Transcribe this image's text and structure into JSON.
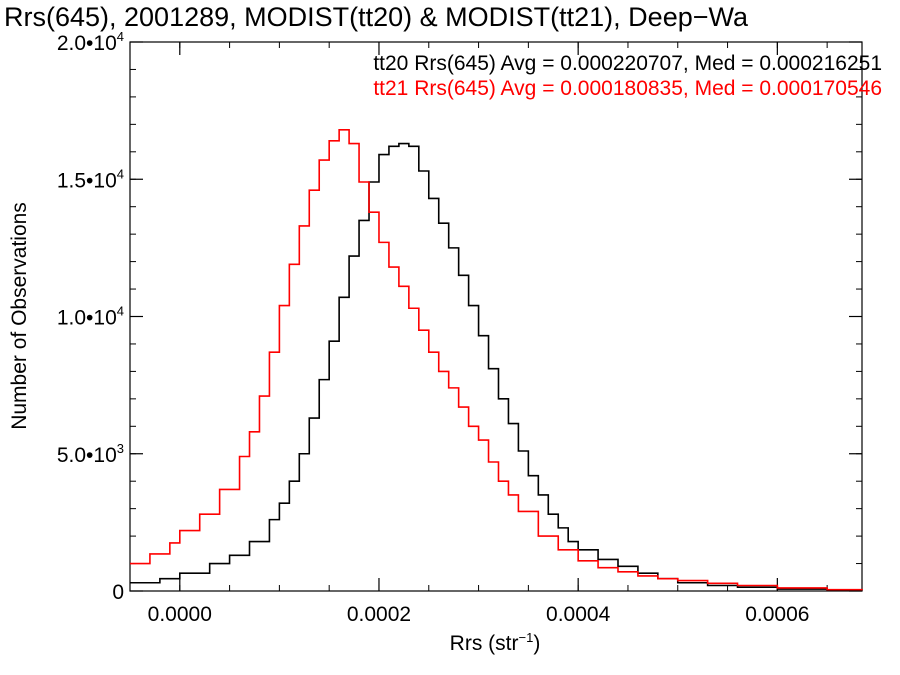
{
  "chart_data": {
    "type": "line",
    "title": "Rrs(645), 2001289, MODIST(tt20) & MODIST(tt21), Deep−Wa",
    "xlabel": "Rrs (str",
    "xlabel_sup": "−1",
    "xlabel_end": ")",
    "ylabel": "Number of Observations",
    "xlim": [
      -5e-05,
      0.000685
    ],
    "ylim": [
      0,
      20000
    ],
    "grid": false,
    "legend_position": "top-right",
    "x_ticks": [
      {
        "value": 0.0,
        "label": "0.0000"
      },
      {
        "value": 0.0002,
        "label": "0.0002"
      },
      {
        "value": 0.0004,
        "label": "0.0004"
      },
      {
        "value": 0.0006,
        "label": "0.0006"
      }
    ],
    "x_minor_step": 5e-05,
    "y_ticks": [
      {
        "value": 0,
        "base": "0",
        "exp": ""
      },
      {
        "value": 5000,
        "base": "5.0•10",
        "exp": "3"
      },
      {
        "value": 10000,
        "base": "1.0•10",
        "exp": "4"
      },
      {
        "value": 15000,
        "base": "1.5•10",
        "exp": "4"
      },
      {
        "value": 20000,
        "base": "2.0•10",
        "exp": "4"
      }
    ],
    "y_minor_step": 1000,
    "legend": [
      {
        "text": "tt20 Rrs(645) Avg = 0.000220707, Med = 0.000216251",
        "color": "#000000"
      },
      {
        "text": "tt21 Rrs(645) Avg = 0.000180835, Med = 0.000170546",
        "color": "#ff0000"
      }
    ],
    "series": [
      {
        "color": "#000000",
        "x": [
          -5e-05,
          -2e-05,
          0.0,
          3e-05,
          5e-05,
          7e-05,
          9e-05,
          0.0001,
          0.00011,
          0.00012,
          0.00013,
          0.00014,
          0.00015,
          0.00016,
          0.00017,
          0.00018,
          0.00019,
          0.0002,
          0.00021,
          0.00022,
          0.00023,
          0.00024,
          0.00025,
          0.00026,
          0.00027,
          0.00028,
          0.00029,
          0.0003,
          0.00031,
          0.00032,
          0.00033,
          0.00034,
          0.00035,
          0.00036,
          0.00037,
          0.00038,
          0.00039,
          0.0004,
          0.00042,
          0.00044,
          0.00046,
          0.00048,
          0.0005,
          0.00053,
          0.00056,
          0.0006,
          0.00065,
          0.000685
        ],
        "y": [
          300,
          450,
          650,
          1000,
          1300,
          1800,
          2600,
          3200,
          4000,
          5000,
          6300,
          7700,
          9100,
          10700,
          12200,
          13500,
          14900,
          15900,
          16200,
          16300,
          16200,
          15300,
          14300,
          13400,
          12500,
          11500,
          10400,
          9300,
          8100,
          7000,
          6100,
          5100,
          4200,
          3500,
          2800,
          2300,
          1800,
          1500,
          1150,
          900,
          650,
          450,
          300,
          200,
          140,
          70,
          30,
          20
        ]
      },
      {
        "color": "#ff0000",
        "x": [
          -5e-05,
          -3e-05,
          -1e-05,
          0.0,
          2e-05,
          4e-05,
          6e-05,
          7e-05,
          8e-05,
          9e-05,
          0.0001,
          0.00011,
          0.00012,
          0.00013,
          0.00014,
          0.00015,
          0.00016,
          0.00017,
          0.00018,
          0.00019,
          0.0002,
          0.00021,
          0.00022,
          0.00023,
          0.00024,
          0.00025,
          0.00026,
          0.00027,
          0.00028,
          0.00029,
          0.0003,
          0.00031,
          0.00032,
          0.00033,
          0.00034,
          0.00036,
          0.00038,
          0.0004,
          0.00042,
          0.00044,
          0.00046,
          0.00048,
          0.0005,
          0.00053,
          0.00056,
          0.0006,
          0.00065,
          0.000685
        ],
        "y": [
          1000,
          1350,
          1750,
          2200,
          2800,
          3700,
          4900,
          5800,
          7100,
          8700,
          10400,
          11900,
          13300,
          14600,
          15700,
          16400,
          16800,
          16300,
          14900,
          13800,
          12700,
          11800,
          11100,
          10300,
          9500,
          8700,
          8000,
          7400,
          6700,
          6000,
          5500,
          4700,
          4000,
          3500,
          2900,
          2000,
          1500,
          1100,
          850,
          700,
          550,
          450,
          380,
          280,
          200,
          110,
          50,
          25
        ]
      }
    ]
  }
}
